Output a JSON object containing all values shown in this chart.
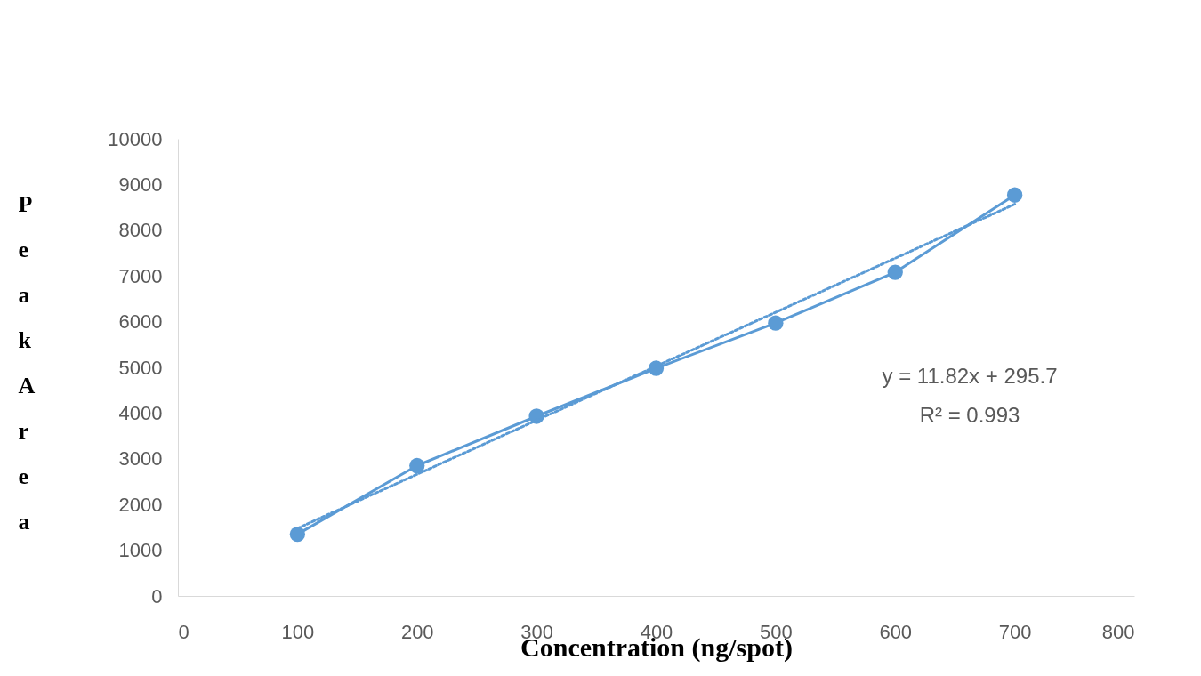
{
  "chart_data": {
    "type": "line",
    "xlabel": "Concentration (ng/spot)",
    "ylabel": "Peak Area",
    "xlim": [
      0,
      800
    ],
    "xticks": [
      0,
      100,
      200,
      300,
      400,
      500,
      600,
      700,
      800
    ],
    "ylim": [
      0,
      10000
    ],
    "yticks": [
      0,
      1000,
      2000,
      3000,
      4000,
      5000,
      6000,
      7000,
      8000,
      9000,
      10000
    ],
    "grid": false,
    "marker": "circle",
    "line_style": "solid",
    "series": [
      {
        "color": "#5b9bd5",
        "x": [
          100,
          200,
          300,
          400,
          500,
          600,
          700
        ],
        "values": [
          1350,
          2850,
          3930,
          4980,
          5970,
          7080,
          8770
        ]
      },
      {
        "type": "line",
        "color": "#5b9bd5",
        "x": [
          100,
          700
        ],
        "values": [
          1478,
          8570
        ],
        "marker": "none",
        "line_style": "dotted"
      }
    ],
    "annotations": [
      "y = 11.82x + 295.7",
      "R² = 0.993"
    ]
  }
}
